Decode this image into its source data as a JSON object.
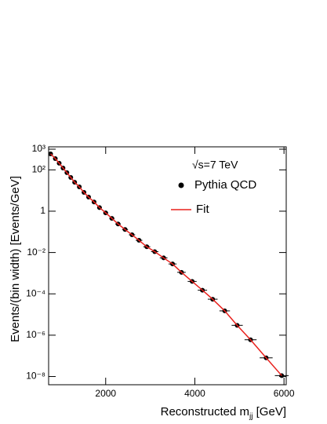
{
  "chart_data": {
    "type": "scatter",
    "annotation": "√s=7 TeV",
    "x_label": [
      "Reconstructed m",
      "jj",
      " [GeV]"
    ],
    "y_label": "Events/(bin width) [Events/GeV]",
    "xlim": [
      720,
      6050
    ],
    "xticks": [
      2000,
      4000,
      6000
    ],
    "ylim": [
      4e-09,
      1300
    ],
    "log_y": true,
    "yticks": [
      {
        "value": 1000,
        "label": "10³"
      },
      {
        "value": 100,
        "label": "10²"
      },
      1,
      {
        "value": 0.01,
        "label": "10⁻²"
      },
      {
        "value": 0.0001,
        "label": "10⁻⁴"
      },
      {
        "value": 1e-06,
        "label": "10⁻⁶"
      },
      {
        "value": 1e-08,
        "label": "10⁻⁸"
      }
    ],
    "legend": "top-right",
    "series": [
      {
        "name": "Pythia QCD",
        "color": "#000000",
        "kind": "points",
        "x": [
          765,
          870,
          957,
          1043,
          1130,
          1217,
          1304,
          1409,
          1513,
          1617,
          1739,
          1861,
          2000,
          2139,
          2278,
          2435,
          2591,
          2748,
          2922,
          3100,
          3300,
          3500,
          3700,
          3940,
          4170,
          4400,
          4670,
          4950,
          5250,
          5600,
          5950
        ],
        "xerr": [
          25,
          28,
          30,
          32,
          34,
          36,
          38,
          40,
          43,
          46,
          49,
          52,
          55,
          58,
          62,
          66,
          70,
          74,
          78,
          82,
          86,
          90,
          95,
          100,
          105,
          110,
          118,
          125,
          135,
          145,
          155
        ],
        "values": [
          590,
          350,
          210,
          123,
          73,
          43,
          25,
          15,
          8.1,
          4.8,
          2.8,
          1.5,
          0.83,
          0.45,
          0.24,
          0.13,
          0.072,
          0.039,
          0.019,
          0.011,
          0.0055,
          0.0028,
          0.0011,
          0.0004,
          0.00015,
          5.5e-05,
          1.5e-05,
          3e-06,
          6e-07,
          8e-08,
          1.1e-08
        ]
      },
      {
        "name": "Fit",
        "color": "#e8201c",
        "kind": "line",
        "x": [
          765,
          870,
          957,
          1043,
          1130,
          1217,
          1304,
          1409,
          1513,
          1617,
          1739,
          1861,
          2000,
          2139,
          2278,
          2435,
          2591,
          2748,
          2922,
          3100,
          3300,
          3500,
          3700,
          3940,
          4170,
          4400,
          4670,
          4950,
          5250,
          5600,
          5950
        ],
        "values": [
          590,
          350,
          210,
          123,
          73,
          43,
          25,
          15,
          8.1,
          4.8,
          2.8,
          1.5,
          0.83,
          0.45,
          0.24,
          0.13,
          0.072,
          0.039,
          0.019,
          0.011,
          0.0055,
          0.0028,
          0.0011,
          0.0004,
          0.00015,
          5.5e-05,
          1.5e-05,
          3e-06,
          6e-07,
          8e-08,
          1.1e-08
        ]
      }
    ]
  }
}
